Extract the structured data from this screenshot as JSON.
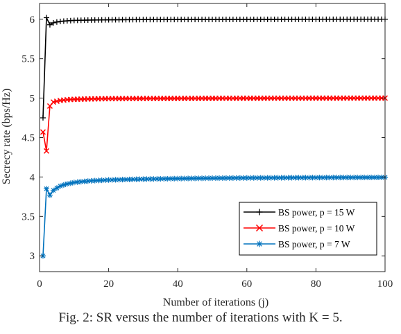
{
  "caption": "Fig. 2: SR versus the number of iterations with K = 5.",
  "chart_data": {
    "type": "line",
    "title": "",
    "xlabel": "Number of iterations (j)",
    "ylabel": "Secrecy rate (bps/Hz)",
    "xlim": [
      0,
      100
    ],
    "ylim": [
      2.8,
      6.2
    ],
    "xticks": [
      0,
      20,
      40,
      60,
      80,
      100
    ],
    "yticks": [
      3,
      3.5,
      4,
      4.5,
      5,
      5.5,
      6
    ],
    "grid": false,
    "legend_position": "bottom-right",
    "series": [
      {
        "name": "BS power, p = 15 W",
        "color": "#000000",
        "marker": "plus",
        "x": [
          1,
          2,
          3,
          4,
          5,
          6,
          8,
          10,
          15,
          20,
          30,
          40,
          60,
          80,
          100
        ],
        "y": [
          4.75,
          6.02,
          5.93,
          5.955,
          5.965,
          5.972,
          5.98,
          5.985,
          5.99,
          5.993,
          5.996,
          5.997,
          5.998,
          5.999,
          6.0
        ]
      },
      {
        "name": "BS power, p = 10 W",
        "color": "#ff0000",
        "marker": "x",
        "x": [
          1,
          2,
          3,
          4,
          5,
          6,
          8,
          10,
          15,
          20,
          30,
          40,
          60,
          80,
          100
        ],
        "y": [
          4.57,
          4.33,
          4.9,
          4.95,
          4.96,
          4.97,
          4.98,
          4.985,
          4.99,
          4.993,
          4.995,
          4.996,
          4.998,
          4.999,
          5.0
        ]
      },
      {
        "name": "BS power, p = 7 W",
        "color": "#0072bd",
        "marker": "star",
        "x": [
          1,
          2,
          3,
          4,
          5,
          6,
          7,
          8,
          10,
          12,
          15,
          20,
          25,
          30,
          40,
          50,
          60,
          80,
          100
        ],
        "y": [
          3.0,
          3.85,
          3.77,
          3.83,
          3.86,
          3.885,
          3.9,
          3.912,
          3.93,
          3.94,
          3.952,
          3.962,
          3.968,
          3.973,
          3.98,
          3.985,
          3.988,
          3.992,
          3.995
        ]
      }
    ]
  }
}
